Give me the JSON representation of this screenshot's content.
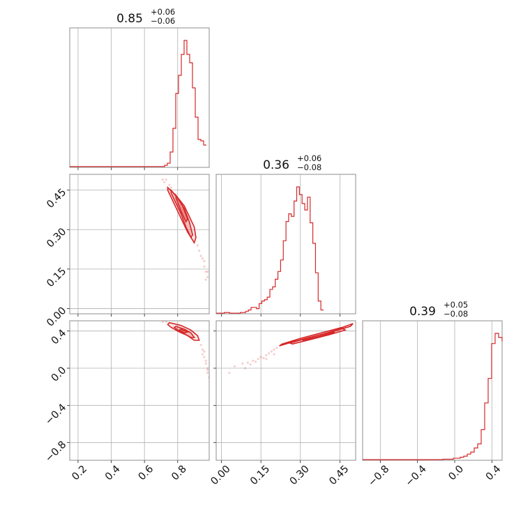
{
  "figure": {
    "background": "#ffffff",
    "accent_color": "#d62728"
  },
  "chart_data": {
    "type": "corner",
    "parameters": [
      "",
      "",
      ""
    ],
    "titles": [
      {
        "median": "0.85",
        "upper": "+0.06",
        "lower": "−0.06"
      },
      {
        "median": "0.36",
        "upper": "+0.06",
        "lower": "−0.08"
      },
      {
        "median": "0.39",
        "upper": "+0.05",
        "lower": "−0.08"
      }
    ],
    "ranges": [
      [
        0.15,
        0.99
      ],
      [
        -0.02,
        0.51
      ],
      [
        -0.99,
        0.51
      ]
    ],
    "ticks": [
      {
        "values": [
          0.2,
          0.4,
          0.6,
          0.8
        ],
        "labels": [
          "0.2",
          "0.4",
          "0.6",
          "0.8"
        ]
      },
      {
        "values": [
          0.0,
          0.15,
          0.3,
          0.45
        ],
        "labels": [
          "0.00",
          "0.15",
          "0.30",
          "0.45"
        ]
      },
      {
        "values": [
          -0.8,
          -0.4,
          0.0,
          0.4
        ],
        "labels": [
          "−0.8",
          "−0.4",
          "0.0",
          "0.4"
        ]
      }
    ],
    "histograms": [
      {
        "parameter_index": 0,
        "bin_start": 0.15,
        "bin_width": 0.0168,
        "counts": [
          0.6,
          0.6,
          0.6,
          0.6,
          0.6,
          0.6,
          0.6,
          0.6,
          0.6,
          0.6,
          0.6,
          0.6,
          0.6,
          0.6,
          0.6,
          0.6,
          0.6,
          0.6,
          0.6,
          0.6,
          0.6,
          0.6,
          0.6,
          0.6,
          0.6,
          0.6,
          0.6,
          0.6,
          0.6,
          0.6,
          0.6,
          0.6,
          0.6,
          0.6,
          1.5,
          3,
          11,
          28,
          53,
          66,
          81,
          91,
          81,
          75,
          57,
          36,
          20,
          19,
          16
        ]
      },
      {
        "parameter_index": 1,
        "bin_start": -0.02,
        "bin_width": 0.0102,
        "counts": [
          0.5,
          0.5,
          0.5,
          1,
          1,
          0.5,
          0.5,
          0.5,
          0.5,
          1,
          1,
          2,
          3,
          5,
          5,
          4,
          8,
          10,
          11,
          13,
          19,
          21,
          27,
          33,
          42,
          57,
          72,
          78,
          76,
          88,
          99,
          93,
          86,
          81,
          91,
          71,
          55,
          32,
          10,
          3
        ]
      },
      {
        "parameter_index": 2,
        "bin_start": -0.99,
        "bin_width": 0.0375,
        "counts": [
          0.3,
          0.3,
          0.3,
          0.3,
          0.3,
          0.3,
          0.3,
          0.3,
          0.3,
          0.3,
          0.3,
          0.3,
          0.3,
          0.3,
          0.3,
          0.3,
          0.3,
          0.3,
          0.3,
          0.3,
          0.3,
          0.3,
          0.3,
          0.5,
          0.5,
          0.5,
          1,
          1,
          1.5,
          2,
          3,
          4,
          6,
          8,
          15,
          28,
          40,
          57,
          62,
          60,
          58,
          58
        ]
      }
    ],
    "joint_2d": [
      {
        "x_index": 0,
        "y_index": 1,
        "contours": [
          [
            [
              0.74,
              0.46
            ],
            [
              0.79,
              0.43
            ],
            [
              0.84,
              0.39
            ],
            [
              0.87,
              0.35
            ],
            [
              0.9,
              0.31
            ],
            [
              0.91,
              0.27
            ],
            [
              0.9,
              0.25
            ],
            [
              0.86,
              0.29
            ],
            [
              0.83,
              0.33
            ],
            [
              0.8,
              0.37
            ],
            [
              0.77,
              0.41
            ],
            [
              0.74,
              0.45
            ]
          ],
          [
            [
              0.76,
              0.45
            ],
            [
              0.8,
              0.42
            ],
            [
              0.84,
              0.38
            ],
            [
              0.87,
              0.33
            ],
            [
              0.89,
              0.28
            ],
            [
              0.88,
              0.27
            ],
            [
              0.85,
              0.31
            ],
            [
              0.82,
              0.36
            ],
            [
              0.79,
              0.4
            ],
            [
              0.76,
              0.44
            ]
          ],
          [
            [
              0.79,
              0.43
            ],
            [
              0.83,
              0.39
            ],
            [
              0.86,
              0.34
            ],
            [
              0.85,
              0.33
            ],
            [
              0.82,
              0.37
            ],
            [
              0.79,
              0.42
            ]
          ]
        ],
        "points": [
          [
            0.72,
            0.48
          ],
          [
            0.73,
            0.49
          ],
          [
            0.75,
            0.47
          ],
          [
            0.93,
            0.22
          ],
          [
            0.95,
            0.19
          ],
          [
            0.96,
            0.16
          ],
          [
            0.97,
            0.14
          ],
          [
            0.98,
            0.12
          ],
          [
            0.94,
            0.2
          ],
          [
            0.96,
            0.18
          ],
          [
            0.98,
            0.14
          ],
          [
            0.71,
            0.49
          ],
          [
            0.76,
            0.46
          ],
          [
            0.92,
            0.24
          ],
          [
            0.97,
            0.11
          ]
        ]
      },
      {
        "x_index": 0,
        "y_index": 2,
        "contours": [
          [
            [
              0.75,
              0.49
            ],
            [
              0.82,
              0.46
            ],
            [
              0.88,
              0.41
            ],
            [
              0.92,
              0.35
            ],
            [
              0.93,
              0.3
            ],
            [
              0.9,
              0.3
            ],
            [
              0.86,
              0.35
            ],
            [
              0.81,
              0.39
            ],
            [
              0.76,
              0.44
            ],
            [
              0.74,
              0.47
            ]
          ],
          [
            [
              0.79,
              0.45
            ],
            [
              0.84,
              0.42
            ],
            [
              0.88,
              0.38
            ],
            [
              0.9,
              0.33
            ],
            [
              0.88,
              0.33
            ],
            [
              0.84,
              0.37
            ],
            [
              0.8,
              0.41
            ],
            [
              0.78,
              0.44
            ]
          ],
          [
            [
              0.82,
              0.42
            ],
            [
              0.86,
              0.39
            ],
            [
              0.84,
              0.38
            ],
            [
              0.81,
              0.41
            ]
          ]
        ],
        "points": [
          [
            0.71,
            0.5
          ],
          [
            0.73,
            0.5
          ],
          [
            0.95,
            0.2
          ],
          [
            0.96,
            0.12
          ],
          [
            0.97,
            0.05
          ],
          [
            0.98,
            -0.02
          ],
          [
            0.99,
            -0.1
          ],
          [
            0.95,
            0.15
          ],
          [
            0.97,
            0.08
          ],
          [
            0.98,
            0.0
          ],
          [
            0.94,
            0.25
          ],
          [
            0.96,
            0.18
          ],
          [
            0.98,
            -0.05
          ]
        ]
      },
      {
        "x_index": 1,
        "y_index": 2,
        "contours": [
          [
            [
              0.23,
              0.26
            ],
            [
              0.3,
              0.32
            ],
            [
              0.38,
              0.38
            ],
            [
              0.46,
              0.44
            ],
            [
              0.5,
              0.48
            ],
            [
              0.49,
              0.45
            ],
            [
              0.43,
              0.4
            ],
            [
              0.35,
              0.34
            ],
            [
              0.28,
              0.29
            ],
            [
              0.22,
              0.24
            ]
          ],
          [
            [
              0.26,
              0.27
            ],
            [
              0.32,
              0.32
            ],
            [
              0.39,
              0.37
            ],
            [
              0.46,
              0.43
            ],
            [
              0.47,
              0.41
            ],
            [
              0.41,
              0.36
            ],
            [
              0.34,
              0.31
            ],
            [
              0.27,
              0.26
            ]
          ],
          [
            [
              0.31,
              0.3
            ],
            [
              0.37,
              0.34
            ],
            [
              0.43,
              0.39
            ],
            [
              0.42,
              0.37
            ],
            [
              0.36,
              0.33
            ],
            [
              0.31,
              0.29
            ]
          ]
        ],
        "points": [
          [
            0.05,
            0.02
          ],
          [
            0.08,
            0.05
          ],
          [
            0.1,
            0.06
          ],
          [
            0.12,
            0.08
          ],
          [
            0.14,
            0.1
          ],
          [
            0.15,
            0.12
          ],
          [
            0.17,
            0.14
          ],
          [
            0.18,
            0.16
          ],
          [
            0.2,
            0.2
          ],
          [
            0.16,
            0.11
          ],
          [
            0.13,
            0.07
          ],
          [
            0.19,
            0.18
          ],
          [
            0.21,
            0.22
          ],
          [
            0.11,
            0.04
          ],
          [
            0.09,
            0.0
          ],
          [
            0.03,
            -0.05
          ],
          [
            0.17,
            0.1
          ],
          [
            0.2,
            0.15
          ]
        ]
      }
    ],
    "grid": true,
    "color": "#d62728"
  }
}
